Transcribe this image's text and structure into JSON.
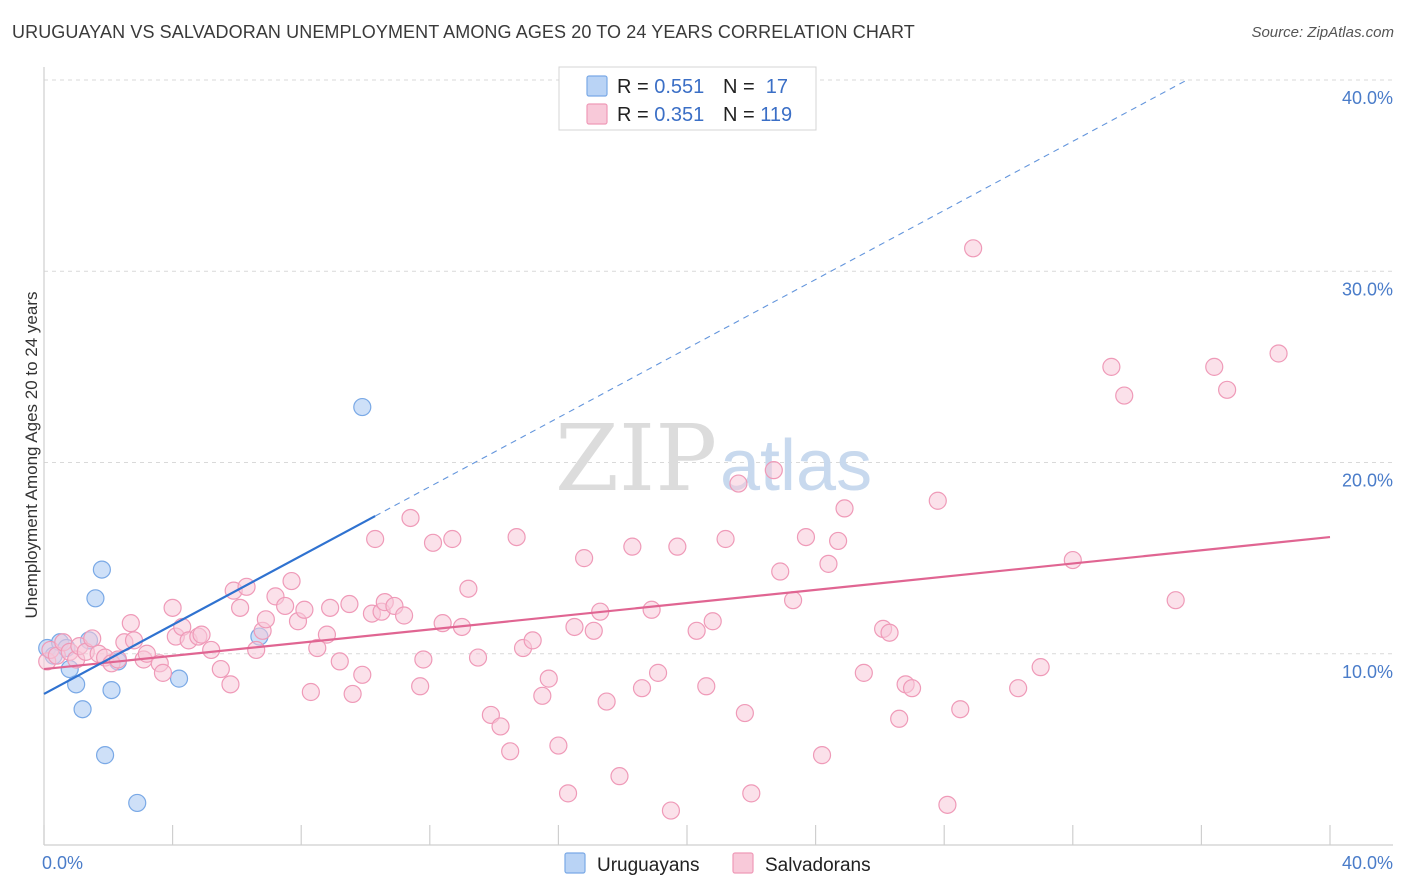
{
  "title": "URUGUAYAN VS SALVADORAN UNEMPLOYMENT AMONG AGES 20 TO 24 YEARS CORRELATION CHART",
  "source": "Source: ZipAtlas.com",
  "watermark": {
    "zip": "ZIP",
    "atlas": "atlas"
  },
  "colors": {
    "uruguayans": "#7aa9e6",
    "uruguayans_fill": "#b9d3f5",
    "uruguayans_line": "#2f72d0",
    "salvadorans": "#ef9ab8",
    "salvadorans_fill": "#f8c9d9",
    "salvadorans_line": "#e06592",
    "tick": "#4a7cc9"
  },
  "legend": {
    "rows": [
      {
        "r_label": "R = ",
        "r_value": "0.551",
        "n_label": "N = ",
        "n_value": " 17"
      },
      {
        "r_label": "R = ",
        "r_value": "0.351",
        "n_label": "N = ",
        "n_value": "119"
      }
    ]
  },
  "bottom_legend": [
    "Uruguayans",
    "Salvadorans"
  ],
  "chart_data": {
    "type": "scatter",
    "title": "URUGUAYAN VS SALVADORAN UNEMPLOYMENT AMONG AGES 20 TO 24 YEARS CORRELATION CHART",
    "xlabel": "",
    "ylabel": "Unemployment Among Ages 20 to 24 years",
    "xlim": [
      0,
      40
    ],
    "ylim": [
      0,
      40
    ],
    "x_tick_labels": [
      "0.0%",
      "40.0%"
    ],
    "y_ticks": [
      10,
      20,
      30,
      40
    ],
    "y_tick_labels": [
      "10.0%",
      "20.0%",
      "30.0%",
      "40.0%"
    ],
    "series": [
      {
        "name": "Uruguayans",
        "R": 0.551,
        "N": 17,
        "trend": {
          "x0": 0,
          "y0": 7.9,
          "x1": 10.3,
          "y1": 17.2,
          "dashed_to_x": 40
        },
        "points": [
          [
            0.1,
            10.3
          ],
          [
            0.3,
            9.9
          ],
          [
            0.5,
            10.6
          ],
          [
            0.7,
            10.3
          ],
          [
            0.8,
            9.2
          ],
          [
            1.0,
            8.4
          ],
          [
            1.2,
            7.1
          ],
          [
            1.4,
            10.7
          ],
          [
            1.6,
            12.9
          ],
          [
            1.8,
            14.4
          ],
          [
            1.9,
            4.7
          ],
          [
            2.1,
            8.1
          ],
          [
            2.3,
            9.6
          ],
          [
            2.9,
            2.2
          ],
          [
            4.2,
            8.7
          ],
          [
            6.7,
            10.9
          ],
          [
            9.9,
            22.9
          ]
        ]
      },
      {
        "name": "Salvadorans",
        "R": 0.351,
        "N": 119,
        "trend": {
          "x0": 0,
          "y0": 9.2,
          "x1": 40,
          "y1": 16.1
        },
        "points": [
          [
            0.1,
            9.6
          ],
          [
            0.2,
            10.2
          ],
          [
            0.4,
            9.9
          ],
          [
            0.6,
            10.6
          ],
          [
            0.8,
            10.1
          ],
          [
            1.0,
            9.7
          ],
          [
            1.1,
            10.4
          ],
          [
            1.3,
            10.1
          ],
          [
            1.5,
            10.8
          ],
          [
            1.7,
            10.0
          ],
          [
            1.9,
            9.8
          ],
          [
            2.1,
            9.5
          ],
          [
            2.3,
            9.7
          ],
          [
            2.5,
            10.6
          ],
          [
            2.7,
            11.6
          ],
          [
            2.8,
            10.7
          ],
          [
            3.1,
            9.7
          ],
          [
            3.2,
            10.0
          ],
          [
            3.6,
            9.5
          ],
          [
            3.7,
            9.0
          ],
          [
            4.0,
            12.4
          ],
          [
            4.1,
            10.9
          ],
          [
            4.3,
            11.4
          ],
          [
            4.5,
            10.7
          ],
          [
            4.8,
            10.9
          ],
          [
            4.9,
            11.0
          ],
          [
            5.2,
            10.2
          ],
          [
            5.5,
            9.2
          ],
          [
            5.8,
            8.4
          ],
          [
            5.9,
            13.3
          ],
          [
            6.1,
            12.4
          ],
          [
            6.3,
            13.5
          ],
          [
            6.6,
            10.2
          ],
          [
            6.8,
            11.2
          ],
          [
            6.9,
            11.8
          ],
          [
            7.2,
            13.0
          ],
          [
            7.5,
            12.5
          ],
          [
            7.7,
            13.8
          ],
          [
            7.9,
            11.7
          ],
          [
            8.1,
            12.3
          ],
          [
            8.3,
            8.0
          ],
          [
            8.5,
            10.3
          ],
          [
            8.8,
            11.0
          ],
          [
            8.9,
            12.4
          ],
          [
            9.2,
            9.6
          ],
          [
            9.5,
            12.6
          ],
          [
            9.6,
            7.9
          ],
          [
            9.9,
            8.9
          ],
          [
            10.2,
            12.1
          ],
          [
            10.3,
            16.0
          ],
          [
            10.5,
            12.2
          ],
          [
            10.6,
            12.7
          ],
          [
            10.9,
            12.5
          ],
          [
            11.2,
            12.0
          ],
          [
            11.4,
            17.1
          ],
          [
            11.7,
            8.3
          ],
          [
            11.8,
            9.7
          ],
          [
            12.1,
            15.8
          ],
          [
            12.4,
            11.6
          ],
          [
            12.7,
            16.0
          ],
          [
            13.0,
            11.4
          ],
          [
            13.2,
            13.4
          ],
          [
            13.5,
            9.8
          ],
          [
            13.9,
            6.8
          ],
          [
            14.2,
            6.2
          ],
          [
            14.5,
            4.9
          ],
          [
            14.7,
            16.1
          ],
          [
            14.9,
            10.3
          ],
          [
            15.2,
            10.7
          ],
          [
            15.5,
            7.8
          ],
          [
            15.7,
            8.7
          ],
          [
            16.0,
            5.2
          ],
          [
            16.3,
            2.7
          ],
          [
            16.5,
            11.4
          ],
          [
            16.8,
            15.0
          ],
          [
            17.1,
            11.2
          ],
          [
            17.3,
            12.2
          ],
          [
            17.5,
            7.5
          ],
          [
            17.9,
            3.6
          ],
          [
            18.3,
            15.6
          ],
          [
            18.6,
            8.2
          ],
          [
            18.9,
            12.3
          ],
          [
            19.1,
            9.0
          ],
          [
            19.5,
            1.8
          ],
          [
            19.7,
            15.6
          ],
          [
            20.3,
            11.2
          ],
          [
            20.6,
            8.3
          ],
          [
            20.8,
            11.7
          ],
          [
            21.2,
            16.0
          ],
          [
            21.6,
            18.9
          ],
          [
            21.8,
            6.9
          ],
          [
            22.0,
            2.7
          ],
          [
            22.7,
            19.6
          ],
          [
            22.9,
            14.3
          ],
          [
            23.3,
            12.8
          ],
          [
            23.7,
            16.1
          ],
          [
            24.2,
            4.7
          ],
          [
            24.4,
            14.7
          ],
          [
            24.7,
            15.9
          ],
          [
            24.9,
            17.6
          ],
          [
            25.5,
            9.0
          ],
          [
            26.1,
            11.3
          ],
          [
            26.3,
            11.1
          ],
          [
            26.6,
            6.6
          ],
          [
            26.8,
            8.4
          ],
          [
            27.0,
            8.2
          ],
          [
            27.8,
            18.0
          ],
          [
            28.1,
            2.1
          ],
          [
            28.5,
            7.1
          ],
          [
            28.9,
            31.2
          ],
          [
            30.3,
            8.2
          ],
          [
            31.0,
            9.3
          ],
          [
            32.0,
            14.9
          ],
          [
            33.2,
            25.0
          ],
          [
            33.6,
            23.5
          ],
          [
            35.2,
            12.8
          ],
          [
            36.4,
            25.0
          ],
          [
            36.8,
            23.8
          ],
          [
            38.4,
            25.7
          ]
        ]
      }
    ]
  }
}
